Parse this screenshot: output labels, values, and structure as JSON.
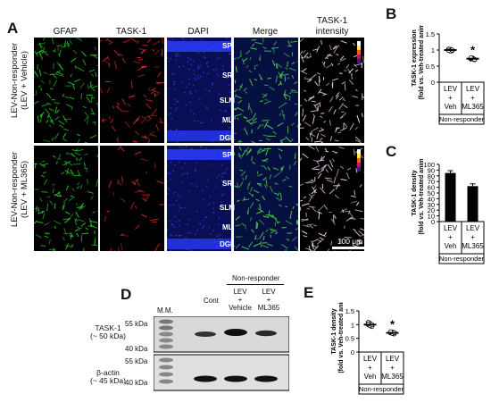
{
  "panels": {
    "A": {
      "letter": "A",
      "columns": [
        "GFAP",
        "TASK-1",
        "DAPI",
        "Merge"
      ],
      "intensity_col": [
        "TASK-1",
        "intensity"
      ],
      "rows": [
        {
          "line1": "LEV-Non-responder",
          "line2": "(LEV + Vehicle)"
        },
        {
          "line1": "LEV-Non-responder",
          "line2": "(LEV + ML365)"
        }
      ],
      "layers": [
        "SP",
        "SR",
        "SLM",
        "ML",
        "DGL"
      ],
      "scale_bar": "100 μm"
    },
    "B": {
      "letter": "B",
      "ylabel_line1": "TASK-1 expression",
      "ylabel_line2": "(fold vs. Veh-treated animal)",
      "yticks": [
        "0",
        "0.5",
        "1",
        "1.5"
      ],
      "groups": [
        {
          "lines": [
            "LEV",
            "+",
            "Veh"
          ]
        },
        {
          "lines": [
            "LEV",
            "+",
            "ML365"
          ]
        }
      ],
      "bottom_label": "Non-responder",
      "star": "*"
    },
    "C": {
      "letter": "C",
      "ylabel_line1": "TASK-1 density",
      "ylabel_line2": "(fold vs. Veh-treated animal)",
      "yticks": [
        "0",
        "10",
        "20",
        "30",
        "40",
        "50",
        "60",
        "70",
        "80",
        "90",
        "100"
      ],
      "groups": [
        {
          "lines": [
            "LEV",
            "+",
            "Veh"
          ]
        },
        {
          "lines": [
            "LEV",
            "+",
            "ML365"
          ]
        }
      ],
      "bottom_label": "Non-responder"
    },
    "D": {
      "letter": "D",
      "mm": "M.M.",
      "lanes": [
        "Cont",
        "LEV\n+\nVehicle",
        "LEV\n+\nML365"
      ],
      "group_header": "Non-responder",
      "task_label": [
        "TASK-1",
        "(~ 50 kDa)"
      ],
      "actin_label": [
        "β-actin",
        "(~ 45 kDa)"
      ],
      "markers": [
        "55 kDa",
        "40 kDa",
        "55 kDa",
        "40 kDa"
      ]
    },
    "E": {
      "letter": "E",
      "ylabel_line1": "TASK-1 density",
      "ylabel_line2": "(fold vs. Veh-treated animal)",
      "yticks": [
        "0",
        "0.5",
        "1",
        "1.5"
      ],
      "groups": [
        {
          "lines": [
            "LEV",
            "+",
            "Veh"
          ]
        },
        {
          "lines": [
            "LEV",
            "+",
            "ML365"
          ]
        }
      ],
      "bottom_label": "Non-responder",
      "star": "*"
    }
  },
  "chart_data": [
    {
      "panel": "B",
      "type": "scatter",
      "categories": [
        "LEV + Veh",
        "LEV + ML365"
      ],
      "ylim": [
        0,
        1.5
      ],
      "yticks": [
        0,
        0.5,
        1,
        1.5
      ],
      "points": [
        [
          1.0,
          1.02,
          0.98,
          1.03,
          0.97,
          1.0,
          0.99
        ],
        [
          0.72,
          0.75,
          0.7,
          0.74,
          0.73,
          0.71,
          0.76
        ]
      ],
      "means": [
        1.0,
        0.73
      ]
    },
    {
      "panel": "C",
      "type": "bar",
      "categories": [
        "LEV + Veh",
        "LEV + ML365"
      ],
      "values": [
        85,
        62
      ],
      "errors": [
        4,
        4
      ],
      "ylim": [
        0,
        100
      ],
      "yticks": [
        0,
        10,
        20,
        30,
        40,
        50,
        60,
        70,
        80,
        90,
        100
      ]
    },
    {
      "panel": "E",
      "type": "scatter",
      "categories": [
        "LEV + Veh",
        "LEV + ML365"
      ],
      "ylim": [
        0,
        1.5
      ],
      "yticks": [
        0,
        0.5,
        1,
        1.5
      ],
      "points": [
        [
          1.0,
          1.05,
          0.93,
          1.08,
          0.96,
          1.0,
          1.02
        ],
        [
          0.7,
          0.73,
          0.66,
          0.72,
          0.68,
          0.71,
          0.74
        ]
      ],
      "means": [
        1.0,
        0.7
      ]
    }
  ],
  "colors": {
    "gfap": "#22c422",
    "task1": "#e23030",
    "dapi": "#2f43ff",
    "mean_bar": "#000000"
  }
}
